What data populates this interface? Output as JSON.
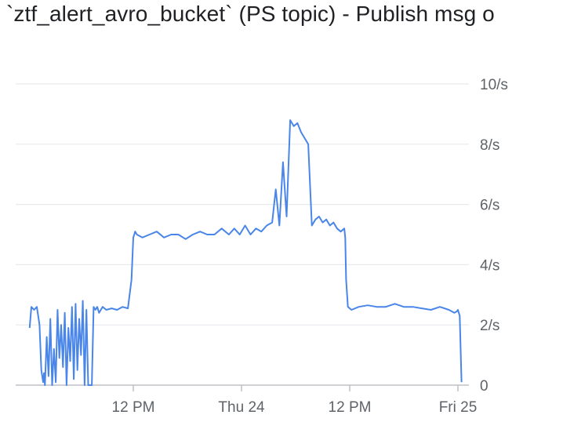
{
  "title": "`ztf_alert_avro_bucket` (PS topic) - Publish msg o",
  "colors": {
    "line": "#4a86e8",
    "grid": "#e8eaed",
    "axis": "#bdc1c6",
    "text": "#5f6368"
  },
  "chart_data": {
    "type": "line",
    "title": "`ztf_alert_avro_bucket` (PS topic) - Publish msg o",
    "xlabel": "",
    "ylabel": "",
    "x_unit": "hours",
    "xlim": [
      -5,
      26
    ],
    "ylim": [
      0,
      10
    ],
    "y_ticks": [
      {
        "value": 0,
        "label": "0"
      },
      {
        "value": 2,
        "label": "2/s"
      },
      {
        "value": 4,
        "label": "4/s"
      },
      {
        "value": 6,
        "label": "6/s"
      },
      {
        "value": 8,
        "label": "8/s"
      },
      {
        "value": 10,
        "label": "10/s"
      }
    ],
    "x_ticks": [
      {
        "value": 0,
        "label": "12 PM"
      },
      {
        "value": 6,
        "label": "Thu 24"
      },
      {
        "value": 12,
        "label": "12 PM"
      },
      {
        "value": 18,
        "label": "Fri 25"
      }
    ],
    "grid": true,
    "series": [
      {
        "color": "#4a86e8",
        "x": [
          -5.75,
          -5.65,
          -5.5,
          -5.35,
          -5.2,
          -5.1,
          -5.0,
          -4.95,
          -4.9,
          -4.8,
          -4.7,
          -4.6,
          -4.5,
          -4.4,
          -4.3,
          -4.2,
          -4.1,
          -4.0,
          -3.9,
          -3.8,
          -3.7,
          -3.6,
          -3.5,
          -3.4,
          -3.3,
          -3.2,
          -3.1,
          -3.0,
          -2.9,
          -2.8,
          -2.7,
          -2.6,
          -2.5,
          -2.4,
          -2.3,
          -2.2,
          -2.1,
          -2.0,
          -1.9,
          -1.8,
          -1.7,
          -1.5,
          -1.2,
          -0.9,
          -0.6,
          -0.3,
          -0.1,
          0.0,
          0.05,
          0.1,
          0.2,
          0.5,
          0.9,
          1.3,
          1.7,
          2.1,
          2.5,
          2.9,
          3.3,
          3.7,
          4.1,
          4.5,
          4.9,
          5.3,
          5.6,
          5.9,
          6.2,
          6.5,
          6.8,
          7.1,
          7.4,
          7.7,
          7.9,
          8.1,
          8.3,
          8.5,
          8.7,
          8.9,
          9.1,
          9.3,
          9.5,
          9.7,
          9.9,
          10.1,
          10.3,
          10.5,
          10.7,
          10.9,
          11.1,
          11.3,
          11.5,
          11.7,
          11.75,
          11.8,
          11.9,
          12.1,
          12.5,
          13.0,
          13.5,
          14.0,
          14.5,
          15.0,
          15.5,
          16.0,
          16.5,
          17.0,
          17.5,
          17.8,
          17.95,
          18.0,
          18.1,
          18.2
        ],
        "y": [
          1.9,
          2.6,
          2.5,
          2.6,
          2.0,
          0.5,
          0.1,
          0.4,
          0.0,
          1.6,
          0.3,
          2.2,
          0.0,
          1.2,
          0.1,
          2.5,
          0.9,
          2.0,
          0.6,
          2.4,
          0.0,
          1.9,
          0.8,
          2.6,
          0.2,
          2.7,
          0.5,
          2.2,
          1.0,
          2.8,
          0.0,
          2.5,
          0.0,
          0.0,
          0.0,
          2.6,
          2.5,
          2.6,
          2.4,
          2.5,
          2.6,
          2.5,
          2.55,
          2.5,
          2.6,
          2.55,
          3.5,
          4.9,
          5.0,
          5.1,
          5.0,
          4.9,
          5.0,
          5.1,
          4.9,
          5.0,
          5.0,
          4.85,
          5.0,
          5.1,
          5.0,
          5.0,
          5.2,
          5.0,
          5.2,
          5.0,
          5.3,
          5.0,
          5.2,
          5.1,
          5.3,
          5.4,
          6.5,
          5.3,
          7.4,
          5.6,
          8.8,
          8.6,
          8.7,
          8.4,
          8.2,
          8.0,
          5.3,
          5.5,
          5.6,
          5.4,
          5.5,
          5.3,
          5.4,
          5.2,
          5.1,
          5.2,
          4.9,
          3.5,
          2.6,
          2.5,
          2.6,
          2.65,
          2.6,
          2.6,
          2.7,
          2.6,
          2.6,
          2.55,
          2.5,
          2.6,
          2.5,
          2.4,
          2.45,
          2.5,
          2.3,
          0.1
        ]
      }
    ]
  }
}
